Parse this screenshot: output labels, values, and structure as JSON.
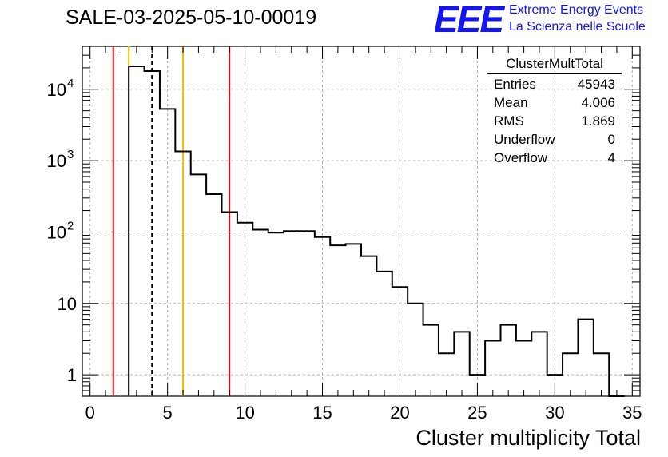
{
  "chart_data": {
    "type": "histogram",
    "title": "SALE-03-2025-05-10-00019",
    "xlabel": "Cluster multiplicity Total",
    "ylabel": "",
    "xlim": [
      -0.5,
      35.5
    ],
    "ylim": [
      0.5,
      40000
    ],
    "yscale": "log",
    "grid": true,
    "bin_width": 1,
    "bin_low_edges": [
      2.5,
      3.5,
      4.5,
      5.5,
      6.5,
      7.5,
      8.5,
      9.5,
      10.5,
      11.5,
      12.5,
      13.5,
      14.5,
      15.5,
      16.5,
      17.5,
      18.5,
      19.5,
      20.5,
      21.5,
      22.5,
      23.5,
      24.5,
      25.5,
      26.5,
      27.5,
      28.5,
      29.5,
      30.5,
      31.5,
      32.5,
      33.5
    ],
    "counts": [
      21000,
      18000,
      5300,
      1350,
      640,
      340,
      190,
      135,
      108,
      98,
      103,
      103,
      85,
      65,
      68,
      46,
      28,
      17,
      10,
      5,
      2,
      4,
      1,
      3,
      5,
      3,
      4,
      1,
      2,
      6,
      2,
      0
    ],
    "x_ticks": [
      0,
      5,
      10,
      15,
      20,
      25,
      30,
      35
    ],
    "x_tick_labels": [
      "0",
      "5",
      "10",
      "15",
      "20",
      "25",
      "30",
      "35"
    ],
    "y_ticks": [
      1,
      10,
      100,
      1000,
      10000
    ],
    "y_tick_labels": [
      {
        "base": "1",
        "exp": ""
      },
      {
        "base": "10",
        "exp": ""
      },
      {
        "base": "10",
        "exp": "2"
      },
      {
        "base": "10",
        "exp": "3"
      },
      {
        "base": "10",
        "exp": "4"
      }
    ],
    "vertical_lines": [
      {
        "x": 1.5,
        "color": "#e01010",
        "style": "solid"
      },
      {
        "x": 2.5,
        "color": "#f0c000",
        "style": "solid"
      },
      {
        "x": 4.0,
        "color": "#000000",
        "style": "dashed"
      },
      {
        "x": 6.0,
        "color": "#f0c000",
        "style": "solid"
      },
      {
        "x": 9.0,
        "color": "#e01010",
        "style": "solid"
      }
    ]
  },
  "stats_box": {
    "name": "ClusterMultTotal",
    "rows": [
      {
        "label": "Entries",
        "value": "45943"
      },
      {
        "label": "Mean",
        "value": "4.006"
      },
      {
        "label": "RMS",
        "value": "1.869"
      },
      {
        "label": "Underflow",
        "value": "0"
      },
      {
        "label": "Overflow",
        "value": "4"
      }
    ]
  },
  "logo": {
    "mark": "EEE",
    "line1": "Extreme Energy Events",
    "line2": "La Scienza nelle Scuole"
  }
}
